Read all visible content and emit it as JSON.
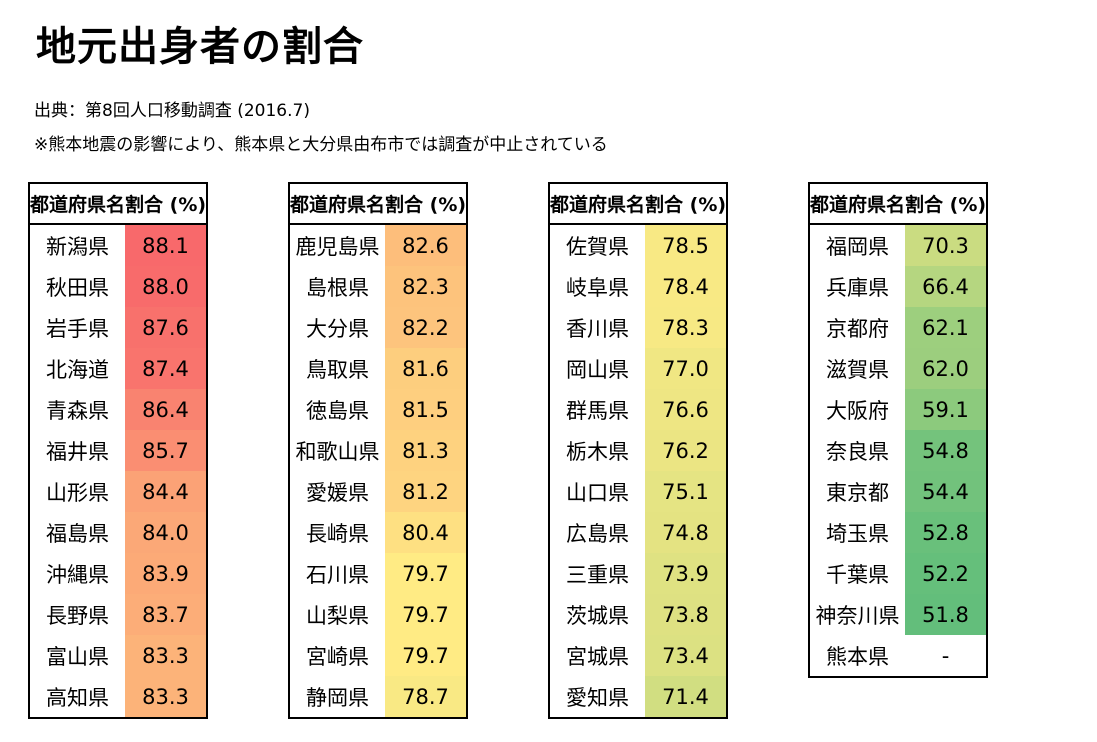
{
  "title": "地元出身者の割合",
  "source": "出典：第8回人口移動調査 (2016.7)",
  "note": "※熊本地震の影響により、熊本県と大分県由布市では調査が中止されている",
  "header": {
    "name": "都道府県名",
    "value": "割合 (%)"
  },
  "colors": {
    "high": "#f8696b",
    "mid": "#ffeb84",
    "low": "#63be7b"
  },
  "columns": [
    [
      {
        "name": "新潟県",
        "value": "88.1"
      },
      {
        "name": "秋田県",
        "value": "88.0"
      },
      {
        "name": "岩手県",
        "value": "87.6"
      },
      {
        "name": "北海道",
        "value": "87.4"
      },
      {
        "name": "青森県",
        "value": "86.4"
      },
      {
        "name": "福井県",
        "value": "85.7"
      },
      {
        "name": "山形県",
        "value": "84.4"
      },
      {
        "name": "福島県",
        "value": "84.0"
      },
      {
        "name": "沖縄県",
        "value": "83.9"
      },
      {
        "name": "長野県",
        "value": "83.7"
      },
      {
        "name": "富山県",
        "value": "83.3"
      },
      {
        "name": "高知県",
        "value": "83.3"
      }
    ],
    [
      {
        "name": "鹿児島県",
        "value": "82.6"
      },
      {
        "name": "島根県",
        "value": "82.3"
      },
      {
        "name": "大分県",
        "value": "82.2"
      },
      {
        "name": "鳥取県",
        "value": "81.6"
      },
      {
        "name": "徳島県",
        "value": "81.5"
      },
      {
        "name": "和歌山県",
        "value": "81.3"
      },
      {
        "name": "愛媛県",
        "value": "81.2"
      },
      {
        "name": "長崎県",
        "value": "80.4"
      },
      {
        "name": "石川県",
        "value": "79.7"
      },
      {
        "name": "山梨県",
        "value": "79.7"
      },
      {
        "name": "宮崎県",
        "value": "79.7"
      },
      {
        "name": "静岡県",
        "value": "78.7"
      }
    ],
    [
      {
        "name": "佐賀県",
        "value": "78.5"
      },
      {
        "name": "岐阜県",
        "value": "78.4"
      },
      {
        "name": "香川県",
        "value": "78.3"
      },
      {
        "name": "岡山県",
        "value": "77.0"
      },
      {
        "name": "群馬県",
        "value": "76.6"
      },
      {
        "name": "栃木県",
        "value": "76.2"
      },
      {
        "name": "山口県",
        "value": "75.1"
      },
      {
        "name": "広島県",
        "value": "74.8"
      },
      {
        "name": "三重県",
        "value": "73.9"
      },
      {
        "name": "茨城県",
        "value": "73.8"
      },
      {
        "name": "宮城県",
        "value": "73.4"
      },
      {
        "name": "愛知県",
        "value": "71.4"
      }
    ],
    [
      {
        "name": "福岡県",
        "value": "70.3"
      },
      {
        "name": "兵庫県",
        "value": "66.4"
      },
      {
        "name": "京都府",
        "value": "62.1"
      },
      {
        "name": "滋賀県",
        "value": "62.0"
      },
      {
        "name": "大阪府",
        "value": "59.1"
      },
      {
        "name": "奈良県",
        "value": "54.8"
      },
      {
        "name": "東京都",
        "value": "54.4"
      },
      {
        "name": "埼玉県",
        "value": "52.8"
      },
      {
        "name": "千葉県",
        "value": "52.2"
      },
      {
        "name": "神奈川県",
        "value": "51.8"
      },
      {
        "name": "熊本県",
        "value": "-"
      }
    ]
  ]
}
